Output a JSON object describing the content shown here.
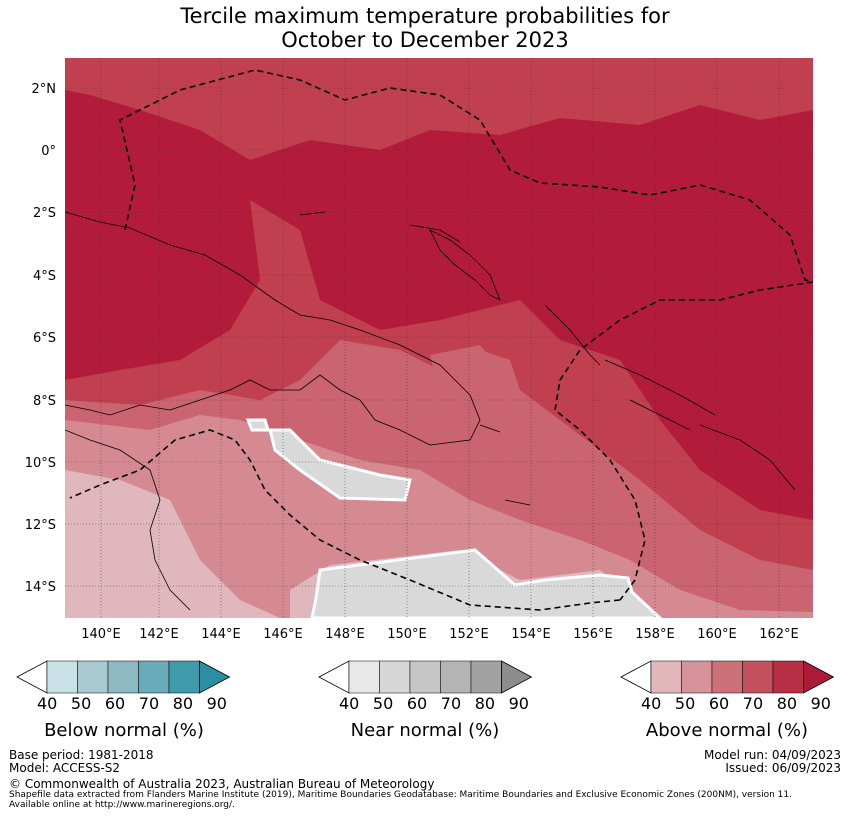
{
  "title": {
    "line1": "Tercile maximum temperature probabilities for",
    "line2": "October to December 2023"
  },
  "map": {
    "lon_labels": [
      "140°E",
      "142°E",
      "144°E",
      "146°E",
      "148°E",
      "150°E",
      "152°E",
      "154°E",
      "156°E",
      "158°E",
      "160°E",
      "162°E"
    ],
    "lat_labels": [
      "2°N",
      "0°",
      "2°S",
      "4°S",
      "6°S",
      "8°S",
      "10°S",
      "12°S",
      "14°S"
    ],
    "colors": {
      "above_90": "#b31b3b",
      "above_80": "#c0404f",
      "above_70": "#ca6470",
      "above_60": "#d58a92",
      "above_50": "#e0b7bc",
      "near_50": "#d9d9d9",
      "ocean_outline": "#000000"
    }
  },
  "colorbars": [
    {
      "label": "Below normal (%)",
      "ticks": [
        "40",
        "50",
        "60",
        "70",
        "80",
        "90"
      ],
      "colors": [
        "#c9e1e7",
        "#a7c9cf",
        "#8db9c3",
        "#6aabb9",
        "#3f9aac",
        "#2b8ea3"
      ]
    },
    {
      "label": "Near normal (%)",
      "ticks": [
        "40",
        "50",
        "60",
        "70",
        "80",
        "90"
      ],
      "colors": [
        "#e8e8e8",
        "#d6d6d6",
        "#c6c6c6",
        "#b4b4b4",
        "#a2a2a2",
        "#8c8c8c"
      ]
    },
    {
      "label": "Above normal (%)",
      "ticks": [
        "40",
        "50",
        "60",
        "70",
        "80",
        "90"
      ],
      "colors": [
        "#e1b7bc",
        "#d6939a",
        "#cd7179",
        "#c3505d",
        "#b72f45",
        "#ad1a38"
      ]
    }
  ],
  "footer": {
    "base_period": "Base period: 1981-2018",
    "model": "Model: ACCESS-S2",
    "model_run": "Model run: 04/09/2023",
    "issued": "Issued: 06/09/2023",
    "copyright": "© Commonwealth of Australia 2023, Australian Bureau of Meteorology",
    "shapefile1": "Shapefile data extracted from Flanders Marine Institute (2019), Maritime Boundaries Geodatabase: Maritime Boundaries and Exclusive Economic Zones (200NM), version 11.",
    "shapefile2": "Available online at http://www.marineregions.org/."
  }
}
